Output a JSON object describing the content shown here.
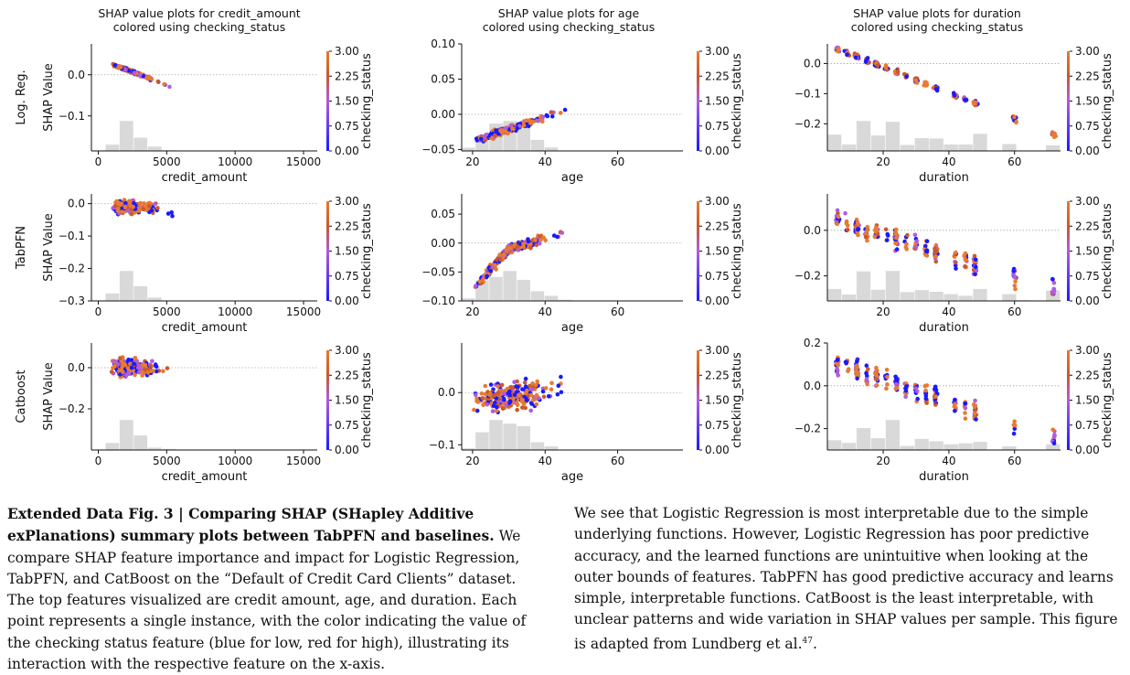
{
  "colorbar": {
    "label": "checking_status",
    "ticks": [
      "3.00",
      "2.25",
      "1.50",
      "0.75",
      "0.00"
    ],
    "colors": [
      "#1a1aff",
      "#b05ce0",
      "#c95a2d",
      "#e87a32"
    ]
  },
  "row_labels": [
    "Log. Reg.",
    "TabPFN",
    "Catboost"
  ],
  "ylabel": "SHAP Value",
  "column_titles": [
    {
      "line1": "SHAP value plots for credit_amount",
      "line2": "colored using checking_status"
    },
    {
      "line1": "SHAP value plots for age",
      "line2": "colored using checking_status"
    },
    {
      "line1": "SHAP value plots for duration",
      "line2": "colored using checking_status"
    }
  ],
  "chart_data": [
    {
      "type": "scatter",
      "model": "Log. Reg.",
      "feature": "credit_amount",
      "xlabel": "credit_amount",
      "xlim": [
        -500,
        16000
      ],
      "ylim": [
        -0.185,
        0.075
      ],
      "xticks": [
        0,
        5000,
        10000,
        15000
      ],
      "xtick_labels": [
        "0",
        "5000",
        "10000",
        "15000"
      ],
      "yticks": [
        0.0,
        -0.1
      ],
      "ytick_labels": [
        "0.0",
        "−0.1"
      ],
      "pattern": "lr_credit"
    },
    {
      "type": "scatter",
      "model": "Log. Reg.",
      "feature": "age",
      "xlabel": "age",
      "xlim": [
        17,
        78
      ],
      "ylim": [
        -0.052,
        0.1
      ],
      "xticks": [
        20,
        40,
        60
      ],
      "xtick_labels": [
        "20",
        "40",
        "60"
      ],
      "yticks": [
        0.1,
        0.05,
        0.0,
        -0.05
      ],
      "ytick_labels": [
        "0.10",
        "0.05",
        "0.00",
        "−0.05"
      ],
      "pattern": "lr_age"
    },
    {
      "type": "scatter",
      "model": "Log. Reg.",
      "feature": "duration",
      "xlabel": "duration",
      "xlim": [
        3,
        74
      ],
      "ylim": [
        -0.29,
        0.065
      ],
      "xticks": [
        20,
        40,
        60
      ],
      "xtick_labels": [
        "20",
        "40",
        "60"
      ],
      "yticks": [
        0.0,
        -0.1,
        -0.2
      ],
      "ytick_labels": [
        "0.0",
        "−0.1",
        "−0.2"
      ],
      "pattern": "lr_duration"
    },
    {
      "type": "scatter",
      "model": "TabPFN",
      "feature": "credit_amount",
      "xlabel": "credit_amount",
      "xlim": [
        -500,
        16000
      ],
      "ylim": [
        -0.3,
        0.03
      ],
      "xticks": [
        0,
        5000,
        10000,
        15000
      ],
      "xtick_labels": [
        "0",
        "5000",
        "10000",
        "15000"
      ],
      "yticks": [
        0.0,
        -0.1,
        -0.2,
        -0.3
      ],
      "ytick_labels": [
        "0.0",
        "−0.1",
        "−0.2",
        "−0.3"
      ],
      "pattern": "tab_credit"
    },
    {
      "type": "scatter",
      "model": "TabPFN",
      "feature": "age",
      "xlabel": "age",
      "xlim": [
        17,
        78
      ],
      "ylim": [
        -0.1,
        0.085
      ],
      "xticks": [
        20,
        40,
        60
      ],
      "xtick_labels": [
        "20",
        "40",
        "60"
      ],
      "yticks": [
        0.05,
        0.0,
        -0.05,
        -0.1
      ],
      "ytick_labels": [
        "0.05",
        "0.00",
        "−0.05",
        "−0.10"
      ],
      "pattern": "tab_age"
    },
    {
      "type": "scatter",
      "model": "TabPFN",
      "feature": "duration",
      "xlabel": "duration",
      "xlim": [
        3,
        74
      ],
      "ylim": [
        -0.31,
        0.16
      ],
      "xticks": [
        20,
        40,
        60
      ],
      "xtick_labels": [
        "20",
        "40",
        "60"
      ],
      "yticks": [
        0.0,
        -0.2
      ],
      "ytick_labels": [
        "0.0",
        "−0.2"
      ],
      "pattern": "tab_duration"
    },
    {
      "type": "scatter",
      "model": "Catboost",
      "feature": "credit_amount",
      "xlabel": "credit_amount",
      "xlim": [
        -500,
        16000
      ],
      "ylim": [
        -0.4,
        0.12
      ],
      "xticks": [
        0,
        5000,
        10000,
        15000
      ],
      "xtick_labels": [
        "0",
        "5000",
        "10000",
        "15000"
      ],
      "yticks": [
        0.0,
        -0.2
      ],
      "ytick_labels": [
        "0.0",
        "−0.2"
      ],
      "pattern": "cat_credit"
    },
    {
      "type": "scatter",
      "model": "Catboost",
      "feature": "age",
      "xlabel": "age",
      "xlim": [
        17,
        78
      ],
      "ylim": [
        -0.11,
        0.095
      ],
      "xticks": [
        20,
        40,
        60
      ],
      "xtick_labels": [
        "20",
        "40",
        "60"
      ],
      "yticks": [
        0.0,
        -0.1
      ],
      "ytick_labels": [
        "0.0",
        "−0.1"
      ],
      "pattern": "cat_age"
    },
    {
      "type": "scatter",
      "model": "Catboost",
      "feature": "duration",
      "xlabel": "duration",
      "xlim": [
        3,
        74
      ],
      "ylim": [
        -0.3,
        0.2
      ],
      "xticks": [
        20,
        40,
        60
      ],
      "xtick_labels": [
        "20",
        "40",
        "60"
      ],
      "yticks": [
        0.2,
        0.0,
        -0.2
      ],
      "ytick_labels": [
        "0.2",
        "0.0",
        "−0.2"
      ],
      "pattern": "cat_duration"
    }
  ],
  "caption": {
    "bold": "Extended Data Fig. 3 | Comparing SHAP (SHapley Additive exPlanations) summary plots between TabPFN and baselines.",
    "left_text": " We compare SHAP feature importance and impact for Logistic Regression, TabPFN, and CatBoost on the “Default of Credit Card Clients” dataset. The top features visualized are credit amount, age, and duration. Each point represents a single instance, with the color indicating the value of the checking status feature (blue for low, red for high), illustrating its interaction with the respective feature on the x-axis.",
    "right_text": "We see that Logistic Regression is most interpretable due to the simple underlying functions. However, Logistic Regression has poor predictive accuracy, and the learned functions are unintuitive when looking at the outer bounds of features. TabPFN has good predictive accuracy and learns simple, interpretable functions. CatBoost is the least interpretable, with unclear patterns and wide variation in SHAP values per sample. This figure is adapted from Lundberg et al.",
    "ref": "47",
    "end": "."
  }
}
